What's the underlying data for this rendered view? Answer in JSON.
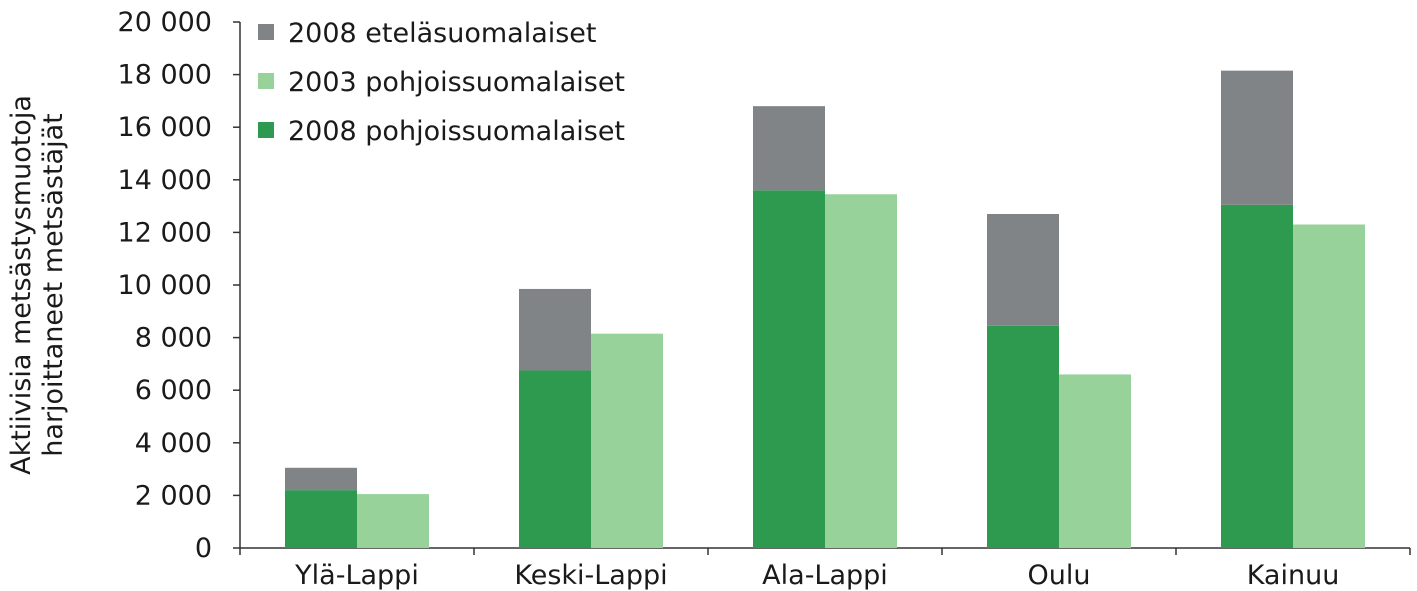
{
  "chart_data": {
    "type": "bar",
    "stacked_groups": true,
    "title": "",
    "ylabel_lines": [
      "Aktiivisia metsästysmuotoja",
      "harjoittaneet metsästäjät"
    ],
    "xlabel": "",
    "ylim": [
      0,
      20000
    ],
    "yticks": [
      0,
      2000,
      4000,
      6000,
      8000,
      10000,
      12000,
      14000,
      16000,
      18000,
      20000
    ],
    "ytick_labels": [
      "0",
      "2 000",
      "4 000",
      "6 000",
      "8 000",
      "10 000",
      "12 000",
      "14 000",
      "16 000",
      "18 000",
      "20 000"
    ],
    "categories": [
      "Ylä-Lappi",
      "Keski-Lappi",
      "Ala-Lappi",
      "Oulu",
      "Kainuu"
    ],
    "series": [
      {
        "name": "2008 pohjoissuomalaiset",
        "color": "#2e9a4f",
        "stack": "2008",
        "values": [
          2200,
          6750,
          13600,
          8450,
          13050
        ]
      },
      {
        "name": "2008 eteläsuomalaiset",
        "color": "#808487",
        "stack": "2008",
        "values": [
          850,
          3100,
          3200,
          4250,
          5100
        ]
      },
      {
        "name": "2003 pohjoissuomalaiset",
        "color": "#96d29a",
        "stack": "2003",
        "values": [
          2050,
          8150,
          13450,
          6600,
          12300
        ]
      }
    ],
    "legend": {
      "placement": "top-left",
      "order": [
        "2008 eteläsuomalaiset",
        "2003 pohjoissuomalaiset",
        "2008 pohjoissuomalaiset"
      ]
    },
    "grid": false
  }
}
